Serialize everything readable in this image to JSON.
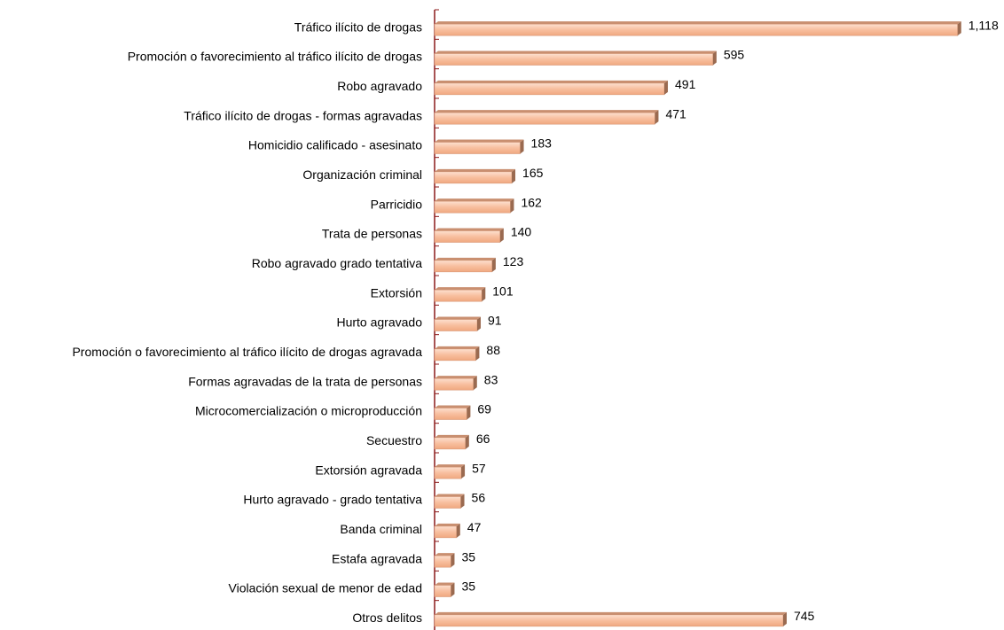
{
  "chart_data": {
    "type": "barh",
    "categories": [
      "Tráfico ilícito de drogas",
      "Promoción o favorecimiento al tráfico ilícito de drogas",
      "Robo agravado",
      "Tráfico ilícito de drogas - formas agravadas",
      "Homicidio calificado - asesinato",
      "Organización criminal",
      "Parricidio",
      "Trata de personas",
      "Robo agravado grado tentativa",
      "Extorsión",
      "Hurto agravado",
      "Promoción o favorecimiento al tráfico ilícito de drogas agravada",
      "Formas agravadas de la trata de personas",
      "Microcomercialización o microproducción",
      "Secuestro",
      "Extorsión agravada",
      "Hurto agravado - grado tentativa",
      "Banda criminal",
      "Estafa agravada",
      "Violación sexual de menor de edad",
      "Otros delitos"
    ],
    "values": [
      1118,
      595,
      491,
      471,
      183,
      165,
      162,
      140,
      123,
      101,
      91,
      88,
      83,
      69,
      66,
      57,
      56,
      47,
      35,
      35,
      745
    ],
    "value_labels": [
      "1,118",
      "595",
      "491",
      "471",
      "183",
      "165",
      "162",
      "140",
      "123",
      "101",
      "91",
      "88",
      "83",
      "69",
      "66",
      "57",
      "56",
      "47",
      "35",
      "35",
      "745"
    ],
    "color": "#f8bf9f",
    "xlim": [
      0,
      1200
    ]
  }
}
